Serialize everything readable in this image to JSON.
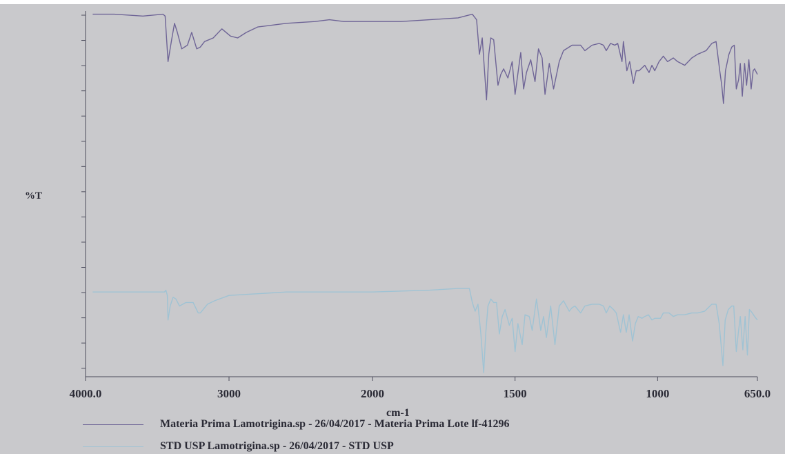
{
  "chart_data": {
    "type": "line",
    "title": "",
    "xlabel": "cm-1",
    "ylabel": "%T",
    "x_axis": {
      "reversed": true,
      "range": [
        4000.0,
        650.0
      ],
      "ticks": [
        "4000.0",
        "3000",
        "2000",
        "1500",
        "1000",
        "650.0"
      ],
      "tick_values": [
        4000,
        3000,
        2000,
        1500,
        1000,
        650
      ]
    },
    "y_axis": {
      "tick_labels": false
    },
    "legend_position": "bottom-left",
    "series": [
      {
        "name": "Materia Prima Lamotrigina.sp - 26/04/2017 - Materia Prima Lote lf-41296",
        "color": "#6e6496",
        "points": [
          [
            3950,
            1
          ],
          [
            3800,
            1
          ],
          [
            3600,
            2
          ],
          [
            3460,
            1
          ],
          [
            3445,
            2
          ],
          [
            3425,
            27
          ],
          [
            3400,
            15
          ],
          [
            3380,
            6
          ],
          [
            3360,
            11
          ],
          [
            3330,
            20
          ],
          [
            3290,
            18
          ],
          [
            3260,
            11
          ],
          [
            3225,
            20
          ],
          [
            3200,
            19
          ],
          [
            3170,
            16
          ],
          [
            3110,
            14
          ],
          [
            3050,
            9
          ],
          [
            2990,
            13
          ],
          [
            2940,
            14
          ],
          [
            2880,
            11
          ],
          [
            2800,
            8
          ],
          [
            2600,
            6
          ],
          [
            2400,
            5
          ],
          [
            2300,
            4
          ],
          [
            2200,
            5
          ],
          [
            2000,
            5
          ],
          [
            1900,
            5
          ],
          [
            1800,
            4
          ],
          [
            1700,
            3
          ],
          [
            1650,
            1
          ],
          [
            1635,
            4
          ],
          [
            1625,
            23
          ],
          [
            1615,
            14
          ],
          [
            1600,
            48
          ],
          [
            1592,
            23
          ],
          [
            1585,
            14
          ],
          [
            1575,
            15
          ],
          [
            1560,
            40
          ],
          [
            1550,
            34
          ],
          [
            1540,
            31
          ],
          [
            1525,
            36
          ],
          [
            1510,
            27
          ],
          [
            1500,
            45
          ],
          [
            1480,
            22
          ],
          [
            1470,
            42
          ],
          [
            1460,
            33
          ],
          [
            1445,
            26
          ],
          [
            1430,
            38
          ],
          [
            1418,
            20
          ],
          [
            1405,
            25
          ],
          [
            1395,
            45
          ],
          [
            1380,
            28
          ],
          [
            1365,
            42
          ],
          [
            1345,
            27
          ],
          [
            1330,
            21
          ],
          [
            1300,
            18
          ],
          [
            1270,
            18
          ],
          [
            1255,
            21
          ],
          [
            1230,
            18
          ],
          [
            1205,
            17
          ],
          [
            1190,
            18
          ],
          [
            1180,
            21
          ],
          [
            1165,
            17
          ],
          [
            1150,
            18
          ],
          [
            1140,
            17
          ],
          [
            1125,
            27
          ],
          [
            1120,
            16
          ],
          [
            1108,
            32
          ],
          [
            1098,
            27
          ],
          [
            1085,
            39
          ],
          [
            1075,
            32
          ],
          [
            1065,
            32
          ],
          [
            1045,
            29
          ],
          [
            1030,
            33
          ],
          [
            1020,
            29
          ],
          [
            1010,
            32
          ],
          [
            995,
            27
          ],
          [
            980,
            24
          ],
          [
            965,
            27
          ],
          [
            945,
            25
          ],
          [
            930,
            27
          ],
          [
            905,
            29
          ],
          [
            880,
            25
          ],
          [
            860,
            23
          ],
          [
            830,
            21
          ],
          [
            810,
            17
          ],
          [
            795,
            16
          ],
          [
            782,
            32
          ],
          [
            775,
            40
          ],
          [
            769,
            50
          ],
          [
            762,
            32
          ],
          [
            750,
            23
          ],
          [
            740,
            19
          ],
          [
            731,
            18
          ],
          [
            724,
            42
          ],
          [
            716,
            37
          ],
          [
            710,
            28
          ],
          [
            703,
            46
          ],
          [
            695,
            28
          ],
          [
            688,
            40
          ],
          [
            680,
            26
          ],
          [
            672,
            42
          ],
          [
            665,
            32
          ],
          [
            660,
            31
          ],
          [
            650,
            34
          ]
        ]
      },
      {
        "name": "STD USP Lamotrigina.sp - 26/04/2017 - STD USP",
        "color": "#9fc3d4",
        "points": [
          [
            3950,
            54
          ],
          [
            3800,
            54
          ],
          [
            3600,
            54
          ],
          [
            3450,
            54
          ],
          [
            3440,
            53
          ],
          [
            3430,
            56
          ],
          [
            3425,
            70
          ],
          [
            3410,
            62
          ],
          [
            3390,
            57
          ],
          [
            3370,
            58
          ],
          [
            3345,
            62
          ],
          [
            3300,
            60
          ],
          [
            3250,
            60
          ],
          [
            3215,
            66
          ],
          [
            3200,
            66
          ],
          [
            3150,
            61
          ],
          [
            3100,
            59
          ],
          [
            3000,
            56
          ],
          [
            2800,
            55
          ],
          [
            2600,
            54
          ],
          [
            2400,
            54
          ],
          [
            2200,
            54
          ],
          [
            2000,
            54
          ],
          [
            1800,
            53
          ],
          [
            1700,
            52
          ],
          [
            1660,
            52
          ],
          [
            1650,
            60
          ],
          [
            1640,
            65
          ],
          [
            1630,
            61
          ],
          [
            1620,
            78
          ],
          [
            1610,
            100
          ],
          [
            1603,
            78
          ],
          [
            1595,
            62
          ],
          [
            1585,
            58
          ],
          [
            1575,
            60
          ],
          [
            1565,
            60
          ],
          [
            1555,
            78
          ],
          [
            1545,
            68
          ],
          [
            1535,
            64
          ],
          [
            1520,
            73
          ],
          [
            1510,
            69
          ],
          [
            1500,
            88
          ],
          [
            1490,
            72
          ],
          [
            1475,
            84
          ],
          [
            1465,
            67
          ],
          [
            1450,
            68
          ],
          [
            1440,
            76
          ],
          [
            1425,
            58
          ],
          [
            1410,
            76
          ],
          [
            1400,
            68
          ],
          [
            1390,
            80
          ],
          [
            1375,
            62
          ],
          [
            1360,
            84
          ],
          [
            1345,
            62
          ],
          [
            1330,
            59
          ],
          [
            1310,
            65
          ],
          [
            1300,
            63
          ],
          [
            1290,
            62
          ],
          [
            1270,
            66
          ],
          [
            1255,
            62
          ],
          [
            1230,
            61
          ],
          [
            1205,
            61
          ],
          [
            1190,
            62
          ],
          [
            1180,
            66
          ],
          [
            1168,
            62
          ],
          [
            1155,
            64
          ],
          [
            1145,
            66
          ],
          [
            1130,
            77
          ],
          [
            1120,
            67
          ],
          [
            1110,
            77
          ],
          [
            1100,
            67
          ],
          [
            1088,
            82
          ],
          [
            1078,
            72
          ],
          [
            1068,
            68
          ],
          [
            1055,
            69
          ],
          [
            1045,
            68
          ],
          [
            1032,
            67
          ],
          [
            1020,
            70
          ],
          [
            1010,
            69
          ],
          [
            990,
            69
          ],
          [
            980,
            66
          ],
          [
            960,
            66
          ],
          [
            945,
            68
          ],
          [
            930,
            67
          ],
          [
            905,
            67
          ],
          [
            880,
            66
          ],
          [
            860,
            66
          ],
          [
            835,
            65
          ],
          [
            810,
            61
          ],
          [
            795,
            61
          ],
          [
            784,
            72
          ],
          [
            778,
            83
          ],
          [
            771,
            96
          ],
          [
            763,
            70
          ],
          [
            752,
            64
          ],
          [
            740,
            62
          ],
          [
            733,
            62
          ],
          [
            724,
            88
          ],
          [
            716,
            76
          ],
          [
            710,
            68
          ],
          [
            701,
            87
          ],
          [
            693,
            68
          ],
          [
            685,
            90
          ],
          [
            678,
            64
          ],
          [
            668,
            66
          ],
          [
            660,
            68
          ],
          [
            650,
            70
          ]
        ]
      }
    ]
  },
  "legend": {
    "series_1": "Materia Prima Lamotrigina.sp - 26/04/2017 - Materia Prima Lote lf-41296",
    "series_2": "STD USP Lamotrigina.sp - 26/04/2017 - STD USP"
  }
}
